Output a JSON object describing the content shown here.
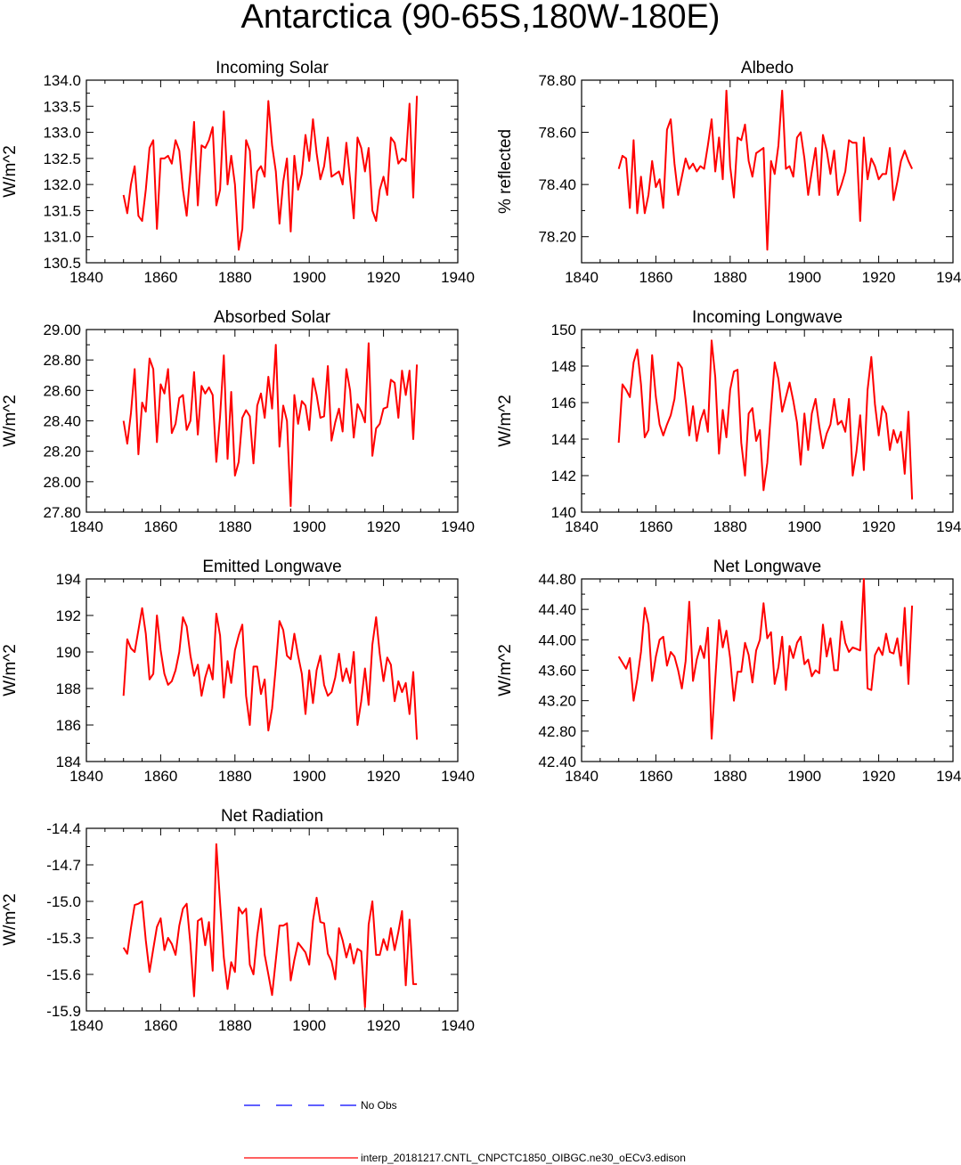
{
  "title": "Antarctica (90-65S,180W-180E)",
  "colors": {
    "model": "#ff0000",
    "obs": "#0000ff",
    "axis": "#000000"
  },
  "legend": {
    "obs_label": "No Obs",
    "model_label": "interp_20181217.CNTL_CNPCTC1850_OIBGC.ne30_oECv3.edison"
  },
  "chart_data": [
    {
      "type": "line",
      "title": "Incoming Solar",
      "ylabel": "W/m^2",
      "xlim": [
        1840,
        1940
      ],
      "ylim": [
        130.5,
        134.0
      ],
      "xticks": [
        "1840",
        "1860",
        "1880",
        "1900",
        "1920",
        "1940"
      ],
      "yticks": [
        "130.5",
        "131.0",
        "131.5",
        "132.0",
        "132.5",
        "133.0",
        "133.5",
        "134.0"
      ],
      "x_start": 1850,
      "series": [
        {
          "name": "interp_20181217.CNTL_CNPCTC1850_OIBGC.ne30_oECv3.edison",
          "values": [
            131.8,
            131.45,
            132.0,
            132.35,
            131.4,
            131.3,
            131.9,
            132.7,
            132.85,
            131.15,
            132.5,
            132.5,
            132.55,
            132.4,
            132.85,
            132.65,
            131.9,
            131.4,
            132.25,
            133.2,
            131.6,
            132.75,
            132.7,
            132.85,
            133.1,
            131.6,
            131.9,
            133.4,
            132.0,
            132.55,
            132.0,
            130.75,
            131.15,
            132.85,
            132.65,
            131.55,
            132.25,
            132.35,
            132.15,
            133.6,
            132.75,
            132.25,
            131.25,
            132.05,
            132.5,
            131.1,
            132.55,
            131.9,
            132.2,
            132.95,
            132.45,
            133.25,
            132.6,
            132.1,
            132.35,
            132.9,
            132.15,
            132.2,
            132.25,
            132.0,
            132.8,
            132.1,
            131.35,
            132.9,
            132.7,
            132.25,
            132.7,
            131.5,
            131.3,
            131.9,
            132.15,
            131.8,
            132.9,
            132.8,
            132.4,
            132.5,
            132.45,
            133.55,
            131.75,
            133.7
          ]
        }
      ]
    },
    {
      "type": "line",
      "title": "Albedo",
      "ylabel": "% reflected",
      "xlim": [
        1840,
        1940
      ],
      "ylim": [
        78.1,
        78.8
      ],
      "xticks": [
        "1840",
        "1860",
        "1880",
        "1900",
        "1920",
        "1940"
      ],
      "yticks": [
        "78.20",
        "78.40",
        "78.60",
        "78.80"
      ],
      "x_start": 1850,
      "series": [
        {
          "name": "interp_20181217.CNTL_CNPCTC1850_OIBGC.ne30_oECv3.edison",
          "values": [
            78.46,
            78.51,
            78.5,
            78.31,
            78.57,
            78.29,
            78.43,
            78.29,
            78.36,
            78.49,
            78.39,
            78.42,
            78.31,
            78.61,
            78.65,
            78.48,
            78.36,
            78.43,
            78.5,
            78.46,
            78.48,
            78.45,
            78.47,
            78.46,
            78.55,
            78.65,
            78.45,
            78.58,
            78.42,
            78.76,
            78.47,
            78.35,
            78.58,
            78.57,
            78.63,
            78.49,
            78.43,
            78.52,
            78.53,
            78.54,
            78.15,
            78.49,
            78.44,
            78.55,
            78.76,
            78.46,
            78.47,
            78.43,
            78.58,
            78.6,
            78.5,
            78.36,
            78.45,
            78.54,
            78.36,
            78.59,
            78.53,
            78.44,
            78.53,
            78.36,
            78.4,
            78.45,
            78.57,
            78.56,
            78.56,
            78.26,
            78.58,
            78.42,
            78.5,
            78.47,
            78.42,
            78.44,
            78.44,
            78.54,
            78.34,
            78.41,
            78.49,
            78.53,
            78.49,
            78.46
          ]
        }
      ]
    },
    {
      "type": "line",
      "title": "Absorbed Solar",
      "ylabel": "W/m^2",
      "xlim": [
        1840,
        1940
      ],
      "ylim": [
        27.8,
        29.0
      ],
      "xticks": [
        "1840",
        "1860",
        "1880",
        "1900",
        "1920",
        "1940"
      ],
      "yticks": [
        "27.80",
        "28.00",
        "28.20",
        "28.40",
        "28.60",
        "28.80",
        "29.00"
      ],
      "x_start": 1850,
      "series": [
        {
          "name": "interp_20181217.CNTL_CNPCTC1850_OIBGC.ne30_oECv3.edison",
          "values": [
            28.4,
            28.25,
            28.45,
            28.74,
            28.18,
            28.52,
            28.46,
            28.81,
            28.74,
            28.26,
            28.64,
            28.58,
            28.74,
            28.32,
            28.38,
            28.55,
            28.57,
            28.34,
            28.4,
            28.72,
            28.31,
            28.63,
            28.58,
            28.62,
            28.57,
            28.13,
            28.43,
            28.83,
            28.15,
            28.59,
            28.04,
            28.13,
            28.42,
            28.47,
            28.43,
            28.12,
            28.5,
            28.58,
            28.42,
            28.69,
            28.48,
            28.9,
            28.23,
            28.5,
            28.4,
            27.84,
            28.57,
            28.38,
            28.53,
            28.5,
            28.34,
            28.68,
            28.57,
            28.42,
            28.43,
            28.76,
            28.27,
            28.39,
            28.48,
            28.33,
            28.74,
            28.6,
            28.29,
            28.51,
            28.46,
            28.39,
            28.91,
            28.17,
            28.35,
            28.38,
            28.48,
            28.49,
            28.67,
            28.65,
            28.42,
            28.73,
            28.57,
            28.73,
            28.28,
            28.77
          ]
        }
      ]
    },
    {
      "type": "line",
      "title": "Incoming Longwave",
      "ylabel": "W/m^2",
      "xlim": [
        1840,
        1940
      ],
      "ylim": [
        140,
        150
      ],
      "xticks": [
        "1840",
        "1860",
        "1880",
        "1900",
        "1920",
        "1940"
      ],
      "yticks": [
        "140",
        "142",
        "144",
        "146",
        "148",
        "150"
      ],
      "x_start": 1850,
      "series": [
        {
          "name": "interp_20181217.CNTL_CNPCTC1850_OIBGC.ne30_oECv3.edison",
          "values": [
            143.8,
            147.0,
            146.7,
            146.3,
            148.2,
            148.9,
            147.0,
            144.1,
            144.5,
            148.6,
            146.3,
            144.8,
            144.2,
            144.8,
            145.3,
            146.2,
            148.2,
            147.9,
            146.2,
            144.2,
            145.8,
            143.9,
            145.0,
            145.6,
            144.4,
            149.4,
            147.4,
            143.2,
            145.6,
            144.1,
            146.7,
            147.7,
            147.8,
            143.8,
            142.0,
            145.4,
            145.7,
            143.9,
            144.5,
            141.2,
            142.7,
            145.6,
            148.2,
            147.3,
            145.5,
            146.3,
            147.1,
            146.1,
            144.9,
            142.6,
            145.4,
            143.4,
            145.4,
            146.2,
            144.7,
            143.5,
            144.3,
            144.8,
            146.2,
            144.8,
            145.0,
            144.4,
            146.2,
            142.0,
            143.3,
            145.3,
            142.3,
            146.7,
            148.5,
            145.9,
            144.2,
            145.8,
            145.4,
            143.4,
            144.5,
            143.8,
            144.4,
            142.1,
            145.5,
            140.7
          ]
        }
      ]
    },
    {
      "type": "line",
      "title": "Emitted Longwave",
      "ylabel": "W/m^2",
      "xlim": [
        1840,
        1940
      ],
      "ylim": [
        184,
        194
      ],
      "xticks": [
        "1840",
        "1860",
        "1880",
        "1900",
        "1920",
        "1940"
      ],
      "yticks": [
        "184",
        "186",
        "188",
        "190",
        "192",
        "194"
      ],
      "x_start": 1850,
      "series": [
        {
          "name": "interp_20181217.CNTL_CNPCTC1850_OIBGC.ne30_oECv3.edison",
          "values": [
            187.6,
            190.7,
            190.2,
            190.0,
            191.2,
            192.4,
            191.0,
            188.5,
            188.8,
            192.0,
            190.1,
            188.8,
            188.2,
            188.4,
            189.0,
            190.0,
            191.9,
            191.4,
            189.8,
            188.7,
            189.3,
            187.6,
            188.6,
            189.3,
            188.5,
            192.1,
            190.9,
            187.5,
            189.5,
            188.3,
            190.1,
            190.9,
            191.5,
            187.6,
            186.0,
            189.2,
            189.2,
            187.7,
            188.5,
            185.7,
            186.9,
            189.2,
            191.7,
            191.2,
            189.8,
            189.6,
            191.0,
            189.8,
            188.8,
            186.6,
            189.0,
            187.2,
            189.0,
            189.8,
            188.2,
            187.6,
            187.8,
            188.6,
            189.9,
            188.4,
            189.1,
            188.3,
            190.0,
            186.0,
            187.3,
            189.1,
            187.1,
            190.4,
            191.9,
            189.9,
            188.4,
            189.7,
            189.3,
            187.3,
            188.4,
            187.8,
            188.3,
            186.6,
            188.9,
            185.2
          ]
        }
      ]
    },
    {
      "type": "line",
      "title": "Net Longwave",
      "ylabel": "W/m^2",
      "xlim": [
        1840,
        1940
      ],
      "ylim": [
        42.4,
        44.8
      ],
      "xticks": [
        "1840",
        "1860",
        "1880",
        "1900",
        "1920",
        "1940"
      ],
      "yticks": [
        "42.40",
        "42.80",
        "43.20",
        "43.60",
        "44.00",
        "44.40",
        "44.80"
      ],
      "x_start": 1850,
      "series": [
        {
          "name": "interp_20181217.CNTL_CNPCTC1850_OIBGC.ne30_oECv3.edison",
          "values": [
            43.78,
            43.7,
            43.62,
            43.76,
            43.2,
            43.48,
            43.84,
            44.42,
            44.2,
            43.46,
            43.78,
            44.0,
            44.04,
            43.66,
            43.84,
            43.78,
            43.6,
            43.36,
            43.72,
            44.5,
            43.46,
            43.74,
            43.92,
            43.76,
            44.16,
            42.7,
            43.48,
            44.26,
            43.9,
            44.12,
            43.76,
            43.2,
            43.58,
            43.58,
            43.96,
            43.8,
            43.44,
            43.86,
            44.0,
            44.48,
            44.02,
            44.1,
            43.42,
            43.64,
            44.04,
            43.34,
            43.92,
            43.76,
            43.96,
            44.04,
            43.68,
            43.74,
            43.52,
            43.6,
            43.56,
            44.2,
            43.78,
            44.02,
            43.6,
            43.6,
            44.24,
            43.96,
            43.84,
            43.9,
            43.88,
            43.86,
            44.8,
            43.36,
            43.34,
            43.8,
            43.9,
            43.8,
            44.08,
            43.84,
            43.82,
            44.02,
            43.66,
            44.42,
            43.42,
            44.45
          ]
        }
      ]
    },
    {
      "type": "line",
      "title": "Net Radiation",
      "ylabel": "W/m^2",
      "xlim": [
        1840,
        1940
      ],
      "ylim": [
        -15.9,
        -14.4
      ],
      "xticks": [
        "1840",
        "1860",
        "1880",
        "1900",
        "1920",
        "1940"
      ],
      "yticks": [
        "-15.9",
        "-15.6",
        "-15.3",
        "-15.0",
        "-14.7",
        "-14.4"
      ],
      "x_start": 1850,
      "series": [
        {
          "name": "interp_20181217.CNTL_CNPCTC1850_OIBGC.ne30_oECv3.edison",
          "values": [
            -15.38,
            -15.43,
            -15.22,
            -15.03,
            -15.02,
            -15.0,
            -15.32,
            -15.58,
            -15.39,
            -15.21,
            -15.14,
            -15.4,
            -15.3,
            -15.35,
            -15.44,
            -15.2,
            -15.06,
            -15.02,
            -15.35,
            -15.78,
            -15.16,
            -15.14,
            -15.36,
            -15.17,
            -15.57,
            -14.53,
            -15.01,
            -15.46,
            -15.72,
            -15.5,
            -15.58,
            -15.05,
            -15.1,
            -15.06,
            -15.52,
            -15.6,
            -15.28,
            -15.06,
            -15.44,
            -15.6,
            -15.77,
            -15.48,
            -15.2,
            -15.2,
            -15.18,
            -15.65,
            -15.48,
            -15.34,
            -15.38,
            -15.42,
            -15.52,
            -15.16,
            -14.97,
            -15.17,
            -15.18,
            -15.43,
            -15.49,
            -15.64,
            -15.22,
            -15.32,
            -15.46,
            -15.35,
            -15.51,
            -15.39,
            -15.41,
            -15.87,
            -15.19,
            -15.0,
            -15.44,
            -15.44,
            -15.31,
            -15.4,
            -15.22,
            -15.4,
            -15.25,
            -15.08,
            -15.69,
            -15.15,
            -15.68,
            -15.68
          ]
        }
      ]
    }
  ]
}
